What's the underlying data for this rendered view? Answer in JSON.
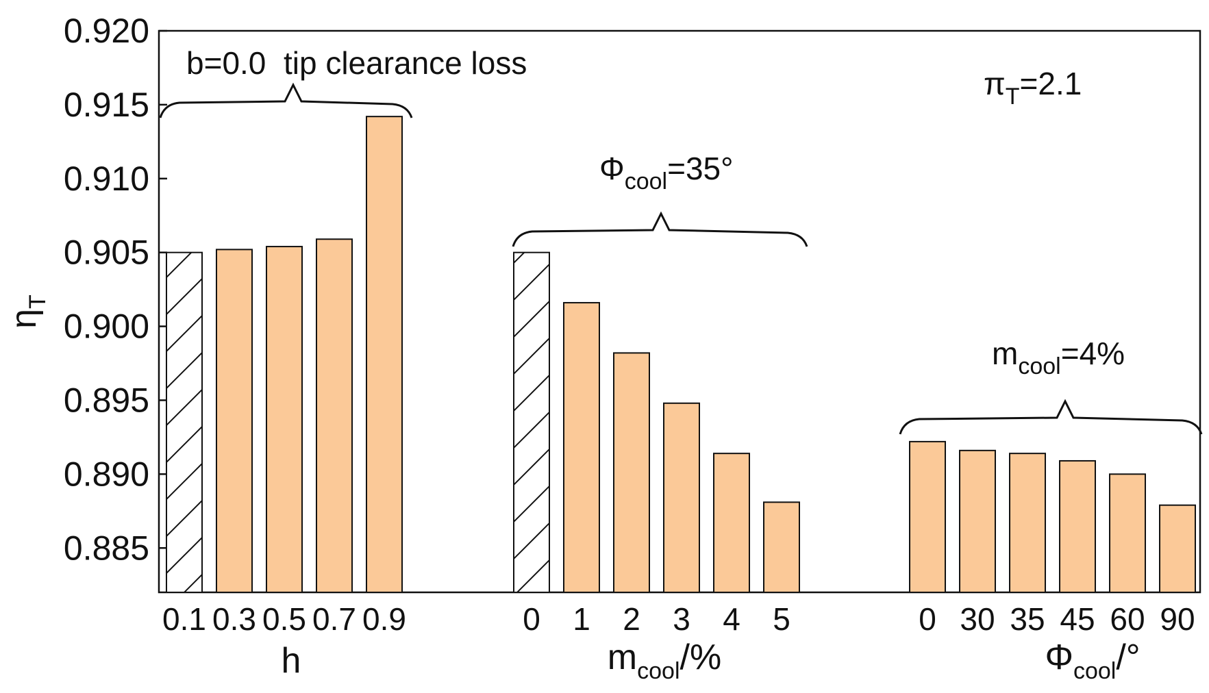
{
  "colors": {
    "bar_fill": "#FBC998",
    "baseline_fill": "#FFFFFF",
    "stroke": "#111111"
  },
  "chart_data": {
    "type": "bar",
    "ylabel": {
      "main": "η",
      "sub": "T"
    },
    "ylim": [
      0.882,
      0.92
    ],
    "yticks": [
      "0.885",
      "0.890",
      "0.895",
      "0.900",
      "0.905",
      "0.910",
      "0.915",
      "0.920"
    ],
    "pressure_ratio": {
      "main": "π",
      "sub": "T",
      "rest": "=2.1"
    },
    "groups": [
      {
        "id": "h",
        "xlabel": {
          "main": "h",
          "sub": "",
          "rest": ""
        },
        "categories": [
          "0.1",
          "0.3",
          "0.5",
          "0.7",
          "0.9"
        ],
        "values": [
          0.905,
          0.9052,
          0.9054,
          0.9059,
          0.9142
        ],
        "baseline": [
          true,
          false,
          false,
          false,
          false
        ],
        "annotation": {
          "text": "b=0.0  tip clearance loss"
        }
      },
      {
        "id": "mcool",
        "xlabel": {
          "main": "m",
          "sub": "cool",
          "rest": "/%"
        },
        "categories": [
          "0",
          "1",
          "2",
          "3",
          "4",
          "5"
        ],
        "values": [
          0.905,
          0.9016,
          0.8982,
          0.8948,
          0.8914,
          0.8881
        ],
        "baseline": [
          true,
          false,
          false,
          false,
          false,
          false
        ],
        "annotation": {
          "main": "Φ",
          "sub": "cool",
          "rest": "=35°"
        }
      },
      {
        "id": "phicool",
        "xlabel": {
          "main": "Φ",
          "sub": "cool",
          "rest": "/°"
        },
        "categories": [
          "0",
          "30",
          "35",
          "45",
          "60",
          "90"
        ],
        "values": [
          0.8922,
          0.8916,
          0.8914,
          0.8909,
          0.89,
          0.8879
        ],
        "baseline": [
          false,
          false,
          false,
          false,
          false,
          false
        ],
        "annotation": {
          "main": "m",
          "sub": "cool",
          "rest": "=4%"
        }
      }
    ]
  }
}
